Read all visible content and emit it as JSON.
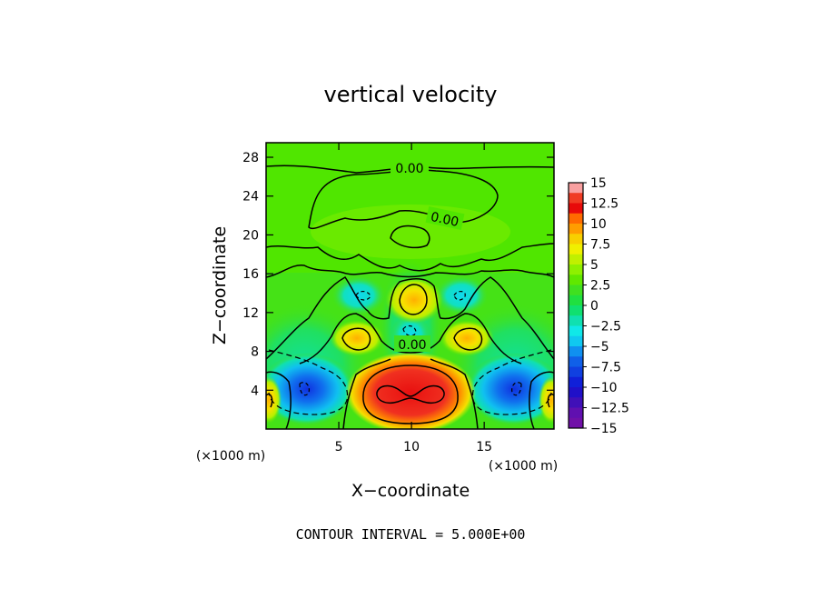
{
  "chart_data": {
    "type": "heatmap",
    "title": "vertical velocity",
    "xlabel": "X−coordinate",
    "ylabel": "Z−coordinate",
    "x_unit": "(×1000 m)",
    "z_unit": "(×1000 m)",
    "xlim": [
      0,
      19.8
    ],
    "ylim": [
      0,
      29.5
    ],
    "x_ticks": [
      5,
      10,
      15
    ],
    "y_ticks": [
      4,
      8,
      12,
      16,
      20,
      24,
      28
    ],
    "colorbar": {
      "ticks": [
        "15",
        "12.5",
        "10",
        "7.5",
        "5",
        "2.5",
        "0",
        "−2.5",
        "−5",
        "−7.5",
        "−10",
        "−12.5",
        "−15"
      ],
      "colors": [
        "#f9a0a0",
        "#f03c24",
        "#e80a0a",
        "#ff6a00",
        "#ff9d00",
        "#f8d000",
        "#f0f000",
        "#c0f000",
        "#8ef000",
        "#60e800",
        "#40e020",
        "#20e040",
        "#10e070",
        "#10e0b0",
        "#10e8e8",
        "#10c8f0",
        "#1090f0",
        "#1060e8",
        "#1040e0",
        "#1020d8",
        "#2010c8",
        "#4010b8",
        "#6010b0",
        "#7010a8"
      ]
    },
    "contour_interval": 5.0,
    "contour_labels": [
      "0.00",
      "0.00",
      "0.00"
    ],
    "features": [
      {
        "name": "central updraft",
        "x": 10.0,
        "z": 3.8,
        "value": 13.5
      },
      {
        "name": "upper updraft",
        "x": 10.0,
        "z": 13.3,
        "value": 6.0
      },
      {
        "name": "left mid updraft",
        "x": 6.3,
        "z": 10.0,
        "value": 6.0
      },
      {
        "name": "right mid updraft",
        "x": 13.7,
        "z": 10.0,
        "value": 6.0
      },
      {
        "name": "left downdraft",
        "x": 2.5,
        "z": 4.0,
        "value": -11.0
      },
      {
        "name": "right downdraft",
        "x": 17.5,
        "z": 4.0,
        "value": -11.0
      },
      {
        "name": "center weak downdraft",
        "x": 10.0,
        "z": 10.0,
        "value": -4.5
      },
      {
        "name": "left upper downdraft",
        "x": 6.5,
        "z": 14.5,
        "value": -5.0
      },
      {
        "name": "right upper downdraft",
        "x": 13.5,
        "z": 14.5,
        "value": -5.0
      }
    ]
  },
  "footer": "CONTOUR INTERVAL = 5.000E+00"
}
